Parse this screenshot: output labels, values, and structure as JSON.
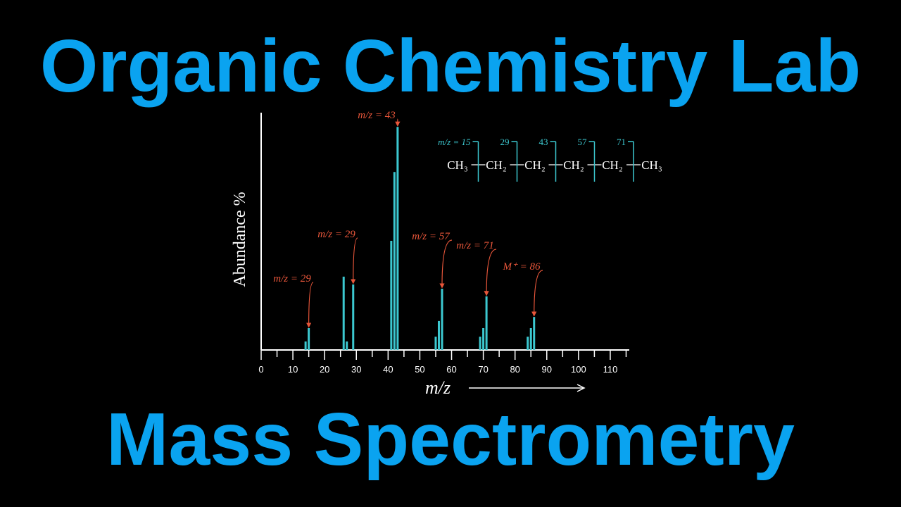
{
  "titles": {
    "top": "Organic Chemistry Lab",
    "bottom": "Mass Spectrometry"
  },
  "chart_data": {
    "type": "bar",
    "x": [
      14,
      15,
      26,
      27,
      29,
      41,
      42,
      43,
      55,
      56,
      57,
      69,
      70,
      71,
      84,
      85,
      86
    ],
    "values": [
      3.6,
      9.2,
      30.9,
      3.6,
      27.6,
      46,
      75,
      94,
      5.6,
      12.2,
      25.8,
      5.6,
      9.2,
      22.6,
      5.6,
      9.2,
      13.9
    ],
    "color": "#3cc8d0",
    "xlim": [
      0,
      116
    ],
    "ylim": [
      0,
      100
    ],
    "xticks": [
      0,
      10,
      20,
      30,
      40,
      50,
      60,
      70,
      80,
      90,
      100,
      110
    ],
    "xminorticks": [
      5,
      15,
      25,
      35,
      45,
      55,
      65,
      75,
      85,
      95,
      105,
      115
    ],
    "x_label": "m/z",
    "y_label": "Abundance %",
    "annotations": [
      "m/z = 43",
      "m/z = 29",
      "m/z = 29",
      "m/z = 57",
      "m/z = 71",
      "M⁺ = 86"
    ]
  },
  "molecule": {
    "groups": [
      "CH₃",
      "CH₂",
      "CH₂",
      "CH₂",
      "CH₂",
      "CH₃"
    ],
    "fragments": [
      "m/z = 15",
      "29",
      "43",
      "57",
      "71"
    ]
  }
}
